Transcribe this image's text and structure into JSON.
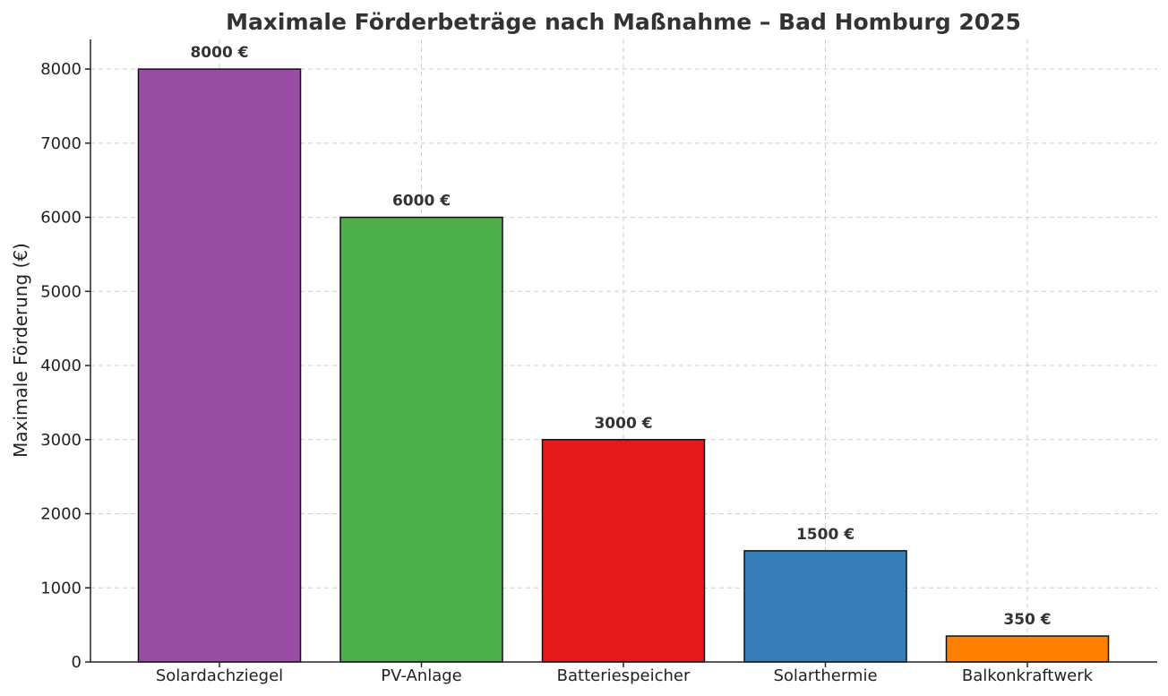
{
  "chart_data": {
    "type": "bar",
    "title": "Maximale Förderbeträge nach Maßnahme – Bad Homburg 2025",
    "xlabel": "",
    "ylabel": "Maximale Förderung (€)",
    "categories": [
      "Solardachziegel",
      "PV-Anlage",
      "Batteriespeicher",
      "Solarthermie",
      "Balkonkraftwerk"
    ],
    "values": [
      8000,
      6000,
      3000,
      1500,
      350
    ],
    "data_labels": [
      "8000 €",
      "6000 €",
      "3000 €",
      "1500 €",
      "350 €"
    ],
    "colors": [
      "#984ea3",
      "#4daf4a",
      "#e41a1c",
      "#377eb8",
      "#ff7f00"
    ],
    "ylim": [
      0,
      8400
    ],
    "yticks": [
      0,
      1000,
      2000,
      3000,
      4000,
      5000,
      6000,
      7000,
      8000
    ],
    "grid": true
  }
}
